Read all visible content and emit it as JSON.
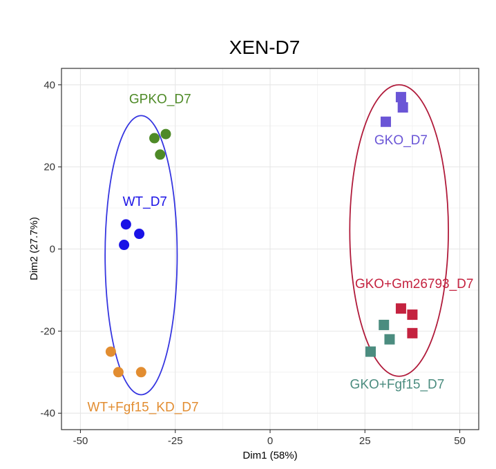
{
  "chart_data": {
    "type": "scatter",
    "title": "XEN-D7",
    "xlabel": "Dim1 (58%)",
    "ylabel": "Dim2 (27.7%)",
    "xlim": [
      -55,
      55
    ],
    "ylim": [
      -44,
      44
    ],
    "xticks": [
      -50,
      -25,
      0,
      25,
      50
    ],
    "xtick_labels": [
      "-50",
      "-25",
      "0",
      "25",
      "50"
    ],
    "yticks": [
      -40,
      -20,
      0,
      20,
      40
    ],
    "ytick_labels": [
      "-40",
      "-20",
      "0",
      "20",
      "40"
    ],
    "grid": true,
    "series": [
      {
        "name": "GPKO_D7",
        "color": "#4e8a27",
        "marker": "circle",
        "points": [
          [
            -30.5,
            27
          ],
          [
            -27.5,
            28
          ],
          [
            -29,
            23
          ]
        ],
        "label_at": [
          -29,
          35.5
        ]
      },
      {
        "name": "WT_D7",
        "color": "#1a12e6",
        "marker": "circle",
        "points": [
          [
            -38,
            6
          ],
          [
            -34.5,
            3.7
          ],
          [
            -38.5,
            1
          ]
        ],
        "label_at": [
          -33,
          10.5
        ]
      },
      {
        "name": "WT+Fgf15_KD_D7",
        "color": "#e28d31",
        "marker": "circle",
        "points": [
          [
            -42,
            -25
          ],
          [
            -40,
            -30
          ],
          [
            -34,
            -30
          ]
        ],
        "label_at": [
          -33.5,
          -39.5
        ]
      },
      {
        "name": "GKO_D7",
        "color": "#6a55d6",
        "marker": "square",
        "points": [
          [
            34.5,
            37
          ],
          [
            35,
            34.5
          ],
          [
            30.5,
            31
          ]
        ],
        "label_at": [
          34.5,
          25.5
        ]
      },
      {
        "name": "GKO+Gm26793_D7",
        "color": "#c4223f",
        "marker": "square",
        "points": [
          [
            34.5,
            -14.5
          ],
          [
            37.5,
            -16
          ],
          [
            37.5,
            -20.5
          ]
        ],
        "label_at": [
          38,
          -9.5
        ]
      },
      {
        "name": "GKO+Fgf15_D7",
        "color": "#4b8c7f",
        "marker": "square",
        "points": [
          [
            30,
            -18.5
          ],
          [
            31.5,
            -22
          ],
          [
            26.5,
            -25
          ]
        ],
        "label_at": [
          33.5,
          -34
        ]
      }
    ],
    "ellipses": [
      {
        "group": "WT",
        "color": "#3535e0",
        "cx": -34,
        "cy": -1.5,
        "rx": 9.5,
        "ry": 34
      },
      {
        "group": "GKO",
        "color": "#b01a3a",
        "cx": 34,
        "cy": 4.5,
        "rx": 13,
        "ry": 35.5
      }
    ]
  }
}
